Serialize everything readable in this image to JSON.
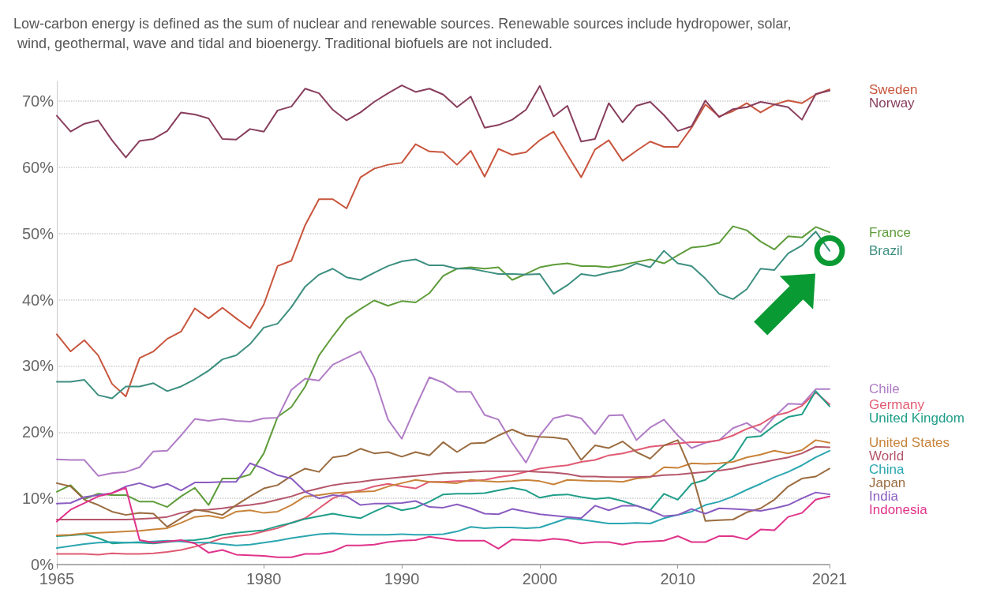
{
  "chart_data": {
    "type": "line",
    "subtitle": "Low-carbon energy is defined as the sum of nuclear and renewable sources. Renewable sources include hydropower, solar, wind, geothermal, wave and tidal and bioenergy. Traditional biofuels are not included.",
    "x": [
      1965,
      1966,
      1967,
      1968,
      1969,
      1970,
      1971,
      1972,
      1973,
      1974,
      1975,
      1976,
      1977,
      1978,
      1979,
      1980,
      1981,
      1982,
      1983,
      1984,
      1985,
      1986,
      1987,
      1988,
      1989,
      1990,
      1991,
      1992,
      1993,
      1994,
      1995,
      1996,
      1997,
      1998,
      1999,
      2000,
      2001,
      2002,
      2003,
      2004,
      2005,
      2006,
      2007,
      2008,
      2009,
      2010,
      2011,
      2012,
      2013,
      2014,
      2015,
      2016,
      2017,
      2018,
      2019,
      2020,
      2021
    ],
    "xlim": [
      1965,
      2021
    ],
    "xticks": [
      1965,
      1980,
      1990,
      2000,
      2010,
      2021
    ],
    "ylim": [
      0,
      73
    ],
    "yticks": [
      {
        "value": 0,
        "label": "0%"
      },
      {
        "value": 10,
        "label": "10%"
      },
      {
        "value": 20,
        "label": "20%"
      },
      {
        "value": 30,
        "label": "30%"
      },
      {
        "value": 40,
        "label": "40%"
      },
      {
        "value": 50,
        "label": "50%"
      },
      {
        "value": 60,
        "label": "60%"
      },
      {
        "value": 70,
        "label": "70%"
      }
    ],
    "grid": "y",
    "series": [
      {
        "name": "Sweden",
        "color": "#c8553d",
        "values": [
          34.8,
          32.2,
          33.9,
          31.6,
          27.3,
          25.4,
          31.2,
          32.2,
          34.1,
          35.2,
          38.7,
          37.2,
          38.8,
          37.2,
          35.7,
          39.3,
          45.1,
          45.9,
          51.3,
          55.2,
          55.2,
          53.8,
          58.5,
          59.8,
          60.4,
          60.7,
          63.5,
          62.4,
          62.3,
          60.4,
          62.5,
          58.6,
          62.8,
          61.9,
          62.3,
          64.1,
          65.4,
          61.9,
          58.5,
          62.7,
          64.1,
          61.0,
          62.5,
          63.9,
          63.1,
          63.1,
          66.0,
          69.5,
          67.7,
          68.5,
          69.7,
          68.3,
          69.5,
          70.1,
          69.7,
          71.0,
          71.8
        ]
      },
      {
        "name": "Norway",
        "color": "#883e5d",
        "values": [
          67.8,
          65.4,
          66.6,
          67.1,
          64.1,
          61.5,
          64.0,
          64.3,
          65.5,
          68.3,
          68.0,
          67.4,
          64.3,
          64.2,
          65.8,
          65.4,
          68.6,
          69.2,
          71.9,
          71.2,
          68.7,
          67.1,
          68.3,
          69.9,
          71.2,
          72.4,
          71.4,
          71.9,
          71.0,
          69.1,
          70.7,
          66.0,
          66.4,
          67.2,
          68.7,
          72.3,
          67.7,
          69.3,
          63.9,
          64.3,
          69.7,
          66.8,
          69.3,
          69.9,
          67.9,
          65.5,
          66.2,
          70.1,
          67.6,
          68.8,
          69.1,
          69.9,
          69.5,
          69.1,
          67.2,
          71.1,
          71.6
        ]
      },
      {
        "name": "France",
        "color": "#5e9c3a",
        "values": [
          11.0,
          12.0,
          9.9,
          10.7,
          10.5,
          10.5,
          9.5,
          9.5,
          8.7,
          10.3,
          11.6,
          9.0,
          13.0,
          13.0,
          13.6,
          16.8,
          22.3,
          23.8,
          26.9,
          31.6,
          34.5,
          37.2,
          38.6,
          39.9,
          39.1,
          39.8,
          39.6,
          41.0,
          43.6,
          44.7,
          44.9,
          44.7,
          44.9,
          43.0,
          43.9,
          44.9,
          45.3,
          45.5,
          45.1,
          45.1,
          44.9,
          45.3,
          45.7,
          46.1,
          45.5,
          46.7,
          47.9,
          48.1,
          48.6,
          51.1,
          50.5,
          48.8,
          47.6,
          49.6,
          49.4,
          51.0,
          50.2
        ]
      },
      {
        "name": "Brazil",
        "color": "#3d8f80",
        "values": [
          27.6,
          27.6,
          27.9,
          25.6,
          25.1,
          26.9,
          26.9,
          27.4,
          26.2,
          26.9,
          28.0,
          29.3,
          31.0,
          31.6,
          33.3,
          35.8,
          36.4,
          38.9,
          42.0,
          43.8,
          44.7,
          43.4,
          43.0,
          44.1,
          45.1,
          45.8,
          46.1,
          45.2,
          45.2,
          44.7,
          44.7,
          44.3,
          43.9,
          43.9,
          43.8,
          43.9,
          40.9,
          42.2,
          43.9,
          43.6,
          44.1,
          44.5,
          45.5,
          44.9,
          47.4,
          45.5,
          45.1,
          43.2,
          40.9,
          40.1,
          41.6,
          44.7,
          44.5,
          47.0,
          48.2,
          50.3,
          47.4
        ]
      },
      {
        "name": "Chile",
        "color": "#b07cc6",
        "values": [
          15.9,
          15.8,
          15.8,
          13.4,
          13.8,
          14.0,
          14.7,
          17.1,
          17.2,
          19.5,
          22.0,
          21.7,
          22.0,
          21.7,
          21.6,
          22.1,
          22.2,
          26.4,
          28.1,
          27.8,
          30.2,
          31.2,
          32.2,
          28.3,
          21.9,
          19.0,
          23.8,
          28.3,
          27.5,
          26.1,
          26.1,
          22.6,
          21.9,
          18.4,
          15.4,
          19.5,
          22.1,
          22.6,
          22.1,
          19.7,
          22.5,
          22.6,
          18.8,
          20.7,
          21.9,
          19.5,
          17.6,
          18.4,
          18.8,
          20.6,
          21.4,
          20.0,
          22.3,
          24.3,
          24.2,
          26.5,
          26.5
        ]
      },
      {
        "name": "Germany",
        "color": "#e05a73",
        "values": [
          1.6,
          1.6,
          1.6,
          1.5,
          1.7,
          1.6,
          1.6,
          1.7,
          1.9,
          2.2,
          2.7,
          3.3,
          4.0,
          4.3,
          4.5,
          5.0,
          5.5,
          6.3,
          7.0,
          8.5,
          10.0,
          10.8,
          11.2,
          11.8,
          12.2,
          11.8,
          11.5,
          12.5,
          12.5,
          12.6,
          12.6,
          12.8,
          13.2,
          13.5,
          14.0,
          14.5,
          14.8,
          15.0,
          15.5,
          15.8,
          16.5,
          16.8,
          17.3,
          17.8,
          18.0,
          18.3,
          18.5,
          18.5,
          18.8,
          19.5,
          20.5,
          21.2,
          22.5,
          23.0,
          24.0,
          26.0,
          24.2
        ]
      },
      {
        "name": "United Kingdom",
        "color": "#1f9e89",
        "values": [
          4.3,
          4.4,
          4.6,
          4.0,
          3.2,
          3.3,
          3.3,
          3.2,
          3.4,
          3.6,
          3.7,
          4.0,
          4.5,
          4.8,
          5.0,
          5.2,
          5.8,
          6.3,
          6.9,
          7.3,
          7.7,
          7.3,
          7.0,
          8.0,
          8.9,
          8.2,
          8.6,
          9.5,
          10.6,
          10.7,
          10.7,
          10.8,
          11.2,
          11.6,
          11.2,
          10.1,
          10.5,
          10.6,
          10.2,
          9.9,
          10.1,
          9.6,
          8.9,
          8.2,
          10.7,
          9.8,
          12.2,
          12.8,
          14.5,
          16.0,
          19.2,
          19.4,
          21.0,
          22.3,
          22.7,
          26.2,
          23.9
        ]
      },
      {
        "name": "United States",
        "color": "#c8833a",
        "values": [
          4.4,
          4.5,
          4.7,
          4.8,
          4.9,
          5.0,
          5.1,
          5.3,
          5.5,
          6.3,
          7.2,
          7.4,
          7.0,
          8.0,
          8.2,
          7.8,
          8.0,
          9.0,
          10.3,
          10.5,
          10.8,
          10.9,
          11.0,
          11.1,
          11.8,
          12.3,
          12.8,
          12.5,
          12.4,
          12.3,
          12.8,
          12.6,
          12.5,
          12.6,
          12.8,
          12.6,
          12.1,
          12.8,
          12.7,
          12.6,
          12.6,
          12.5,
          13.0,
          13.2,
          14.7,
          14.6,
          15.3,
          15.2,
          15.3,
          15.5,
          16.2,
          16.6,
          17.2,
          16.8,
          17.3,
          18.8,
          18.4
        ]
      },
      {
        "name": "World",
        "color": "#b5566b",
        "values": [
          6.8,
          6.8,
          6.8,
          6.8,
          6.8,
          6.8,
          6.9,
          7.0,
          7.2,
          7.8,
          8.2,
          8.3,
          8.5,
          8.8,
          9.0,
          9.3,
          9.8,
          10.3,
          11.0,
          11.5,
          12.0,
          12.3,
          12.5,
          12.8,
          13.0,
          13.2,
          13.4,
          13.6,
          13.8,
          13.9,
          14.0,
          14.1,
          14.1,
          14.1,
          14.1,
          14.0,
          13.9,
          13.7,
          13.3,
          13.3,
          13.2,
          13.2,
          13.2,
          13.3,
          13.5,
          13.6,
          13.8,
          14.0,
          14.2,
          14.5,
          15.0,
          15.4,
          15.8,
          16.2,
          16.8,
          17.8,
          17.7
        ]
      },
      {
        "name": "China",
        "color": "#2ba6b0",
        "values": [
          2.5,
          2.8,
          3.1,
          3.3,
          3.4,
          3.3,
          3.4,
          3.5,
          3.6,
          3.5,
          3.3,
          3.3,
          3.1,
          2.9,
          3.0,
          3.3,
          3.6,
          4.0,
          4.3,
          4.6,
          4.7,
          4.6,
          4.5,
          4.5,
          4.5,
          4.6,
          4.5,
          4.5,
          4.6,
          5.0,
          5.7,
          5.5,
          5.6,
          5.6,
          5.5,
          5.6,
          6.3,
          7.0,
          6.8,
          6.5,
          6.2,
          6.2,
          6.3,
          6.2,
          7.0,
          7.5,
          8.0,
          9.0,
          9.5,
          10.3,
          11.3,
          12.2,
          13.2,
          14.0,
          15.0,
          16.2,
          17.2
        ]
      },
      {
        "name": "Japan",
        "color": "#9a6b3f",
        "values": [
          12.3,
          11.8,
          9.8,
          9.0,
          8.0,
          7.5,
          7.8,
          7.7,
          5.7,
          7.0,
          8.3,
          8.0,
          7.5,
          9.0,
          10.3,
          11.5,
          12.0,
          13.4,
          14.5,
          14.0,
          16.2,
          16.5,
          17.5,
          16.8,
          17.0,
          16.3,
          17.0,
          16.5,
          18.5,
          17.0,
          18.3,
          18.4,
          19.5,
          20.4,
          19.5,
          19.3,
          19.2,
          18.9,
          15.8,
          18.0,
          17.6,
          18.6,
          17.0,
          16.0,
          18.0,
          18.8,
          14.0,
          6.6,
          6.7,
          6.8,
          7.9,
          8.5,
          9.8,
          11.8,
          13.0,
          13.3,
          14.5
        ]
      },
      {
        "name": "India",
        "color": "#8a5cc0",
        "values": [
          9.2,
          9.3,
          10.2,
          10.5,
          10.8,
          11.8,
          12.3,
          11.6,
          12.2,
          11.2,
          12.4,
          12.4,
          12.5,
          12.5,
          15.3,
          14.5,
          13.5,
          13.0,
          11.0,
          10.0,
          10.5,
          10.3,
          9.0,
          9.2,
          9.2,
          9.3,
          9.6,
          8.7,
          8.6,
          9.1,
          8.5,
          7.7,
          7.6,
          8.4,
          8.0,
          7.6,
          7.4,
          7.2,
          7.0,
          8.9,
          8.2,
          8.9,
          8.9,
          8.2,
          7.3,
          7.5,
          8.4,
          7.7,
          8.5,
          8.4,
          8.3,
          8.1,
          8.5,
          9.0,
          10.0,
          10.9,
          10.6
        ]
      },
      {
        "name": "Indonesia",
        "color": "#e0338a",
        "values": [
          6.5,
          8.3,
          9.3,
          10.3,
          10.8,
          11.6,
          3.7,
          3.3,
          3.5,
          3.7,
          3.2,
          1.8,
          2.2,
          1.5,
          1.4,
          1.3,
          1.1,
          1.1,
          1.6,
          1.6,
          2.0,
          2.9,
          2.9,
          3.0,
          3.4,
          3.6,
          3.7,
          4.2,
          3.9,
          3.6,
          3.6,
          3.6,
          2.4,
          3.8,
          3.7,
          3.6,
          3.9,
          3.7,
          3.2,
          3.4,
          3.4,
          3.0,
          3.4,
          3.5,
          3.6,
          4.3,
          3.4,
          3.4,
          4.3,
          4.3,
          3.8,
          5.3,
          5.2,
          7.2,
          7.8,
          9.8,
          10.3
        ]
      }
    ]
  }
}
